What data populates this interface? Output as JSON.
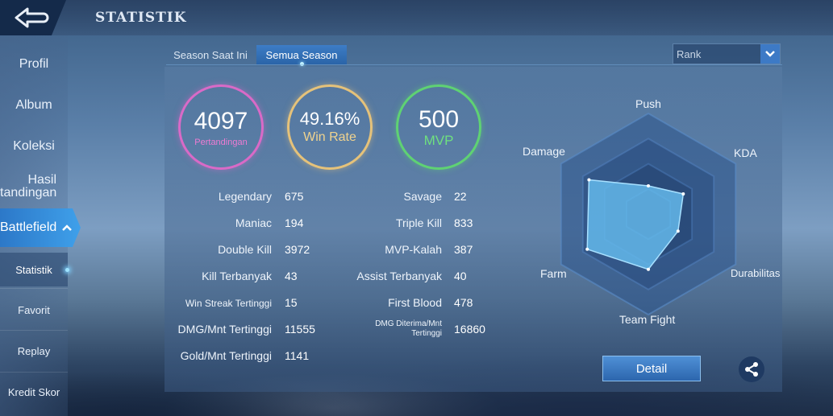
{
  "header": {
    "title": "STATISTIK",
    "back_icon": "back-arrow-icon"
  },
  "sidebar": {
    "items": [
      {
        "label": "Profil"
      },
      {
        "label": "Album"
      },
      {
        "label": "Koleksi"
      },
      {
        "label": "Hasil Pertandingan",
        "line1": "Hasil",
        "line2": "tandingan"
      },
      {
        "label": "Battlefield"
      },
      {
        "label": "Statistik"
      },
      {
        "label": "Favorit"
      },
      {
        "label": "Replay"
      },
      {
        "label": "Kredit Skor"
      }
    ]
  },
  "tabs": [
    {
      "label": "Season Saat Ini",
      "active": false
    },
    {
      "label": "Semua Season",
      "active": true
    }
  ],
  "filter": {
    "selected": "Rank"
  },
  "summary": {
    "matches": {
      "value": "4097",
      "label": "Pertandingan"
    },
    "win_rate": {
      "value": "49.16%",
      "label": "Win Rate"
    },
    "mvp": {
      "value": "500",
      "label": "MVP"
    }
  },
  "stats_left": [
    {
      "label": "Legendary",
      "value": "675"
    },
    {
      "label": "Maniac",
      "value": "194"
    },
    {
      "label": "Double Kill",
      "value": "3972"
    },
    {
      "label": "Kill Terbanyak",
      "value": "43"
    },
    {
      "label": "Win Streak Tertinggi",
      "value": "15"
    },
    {
      "label": "DMG/Mnt Tertinggi",
      "value": "11555"
    },
    {
      "label": "Gold/Mnt Tertinggi",
      "value": "1141"
    }
  ],
  "stats_right": [
    {
      "label": "Savage",
      "value": "22"
    },
    {
      "label": "Triple Kill",
      "value": "833"
    },
    {
      "label": "MVP-Kalah",
      "value": "387"
    },
    {
      "label": "Assist Terbanyak",
      "value": "40"
    },
    {
      "label": "First Blood",
      "value": "478"
    },
    {
      "label": "DMG Diterima/Mnt Tertinggi",
      "line1": "DMG Diterima/Mnt",
      "line2": "Tertinggi",
      "value": "16860"
    }
  ],
  "radar": {
    "axes": [
      "Push",
      "KDA",
      "Durabilitas",
      "Team Fight",
      "Farm",
      "Damage"
    ],
    "levels": [
      0.28,
      0.4,
      0.34,
      0.55,
      0.7,
      0.68
    ]
  },
  "actions": {
    "detail_label": "Detail",
    "share_icon": "share-icon"
  },
  "colors": {
    "accent": "#3fa0ea",
    "matches": "#d96ac7",
    "win_rate": "#e5c27a",
    "mvp": "#5fd273"
  }
}
